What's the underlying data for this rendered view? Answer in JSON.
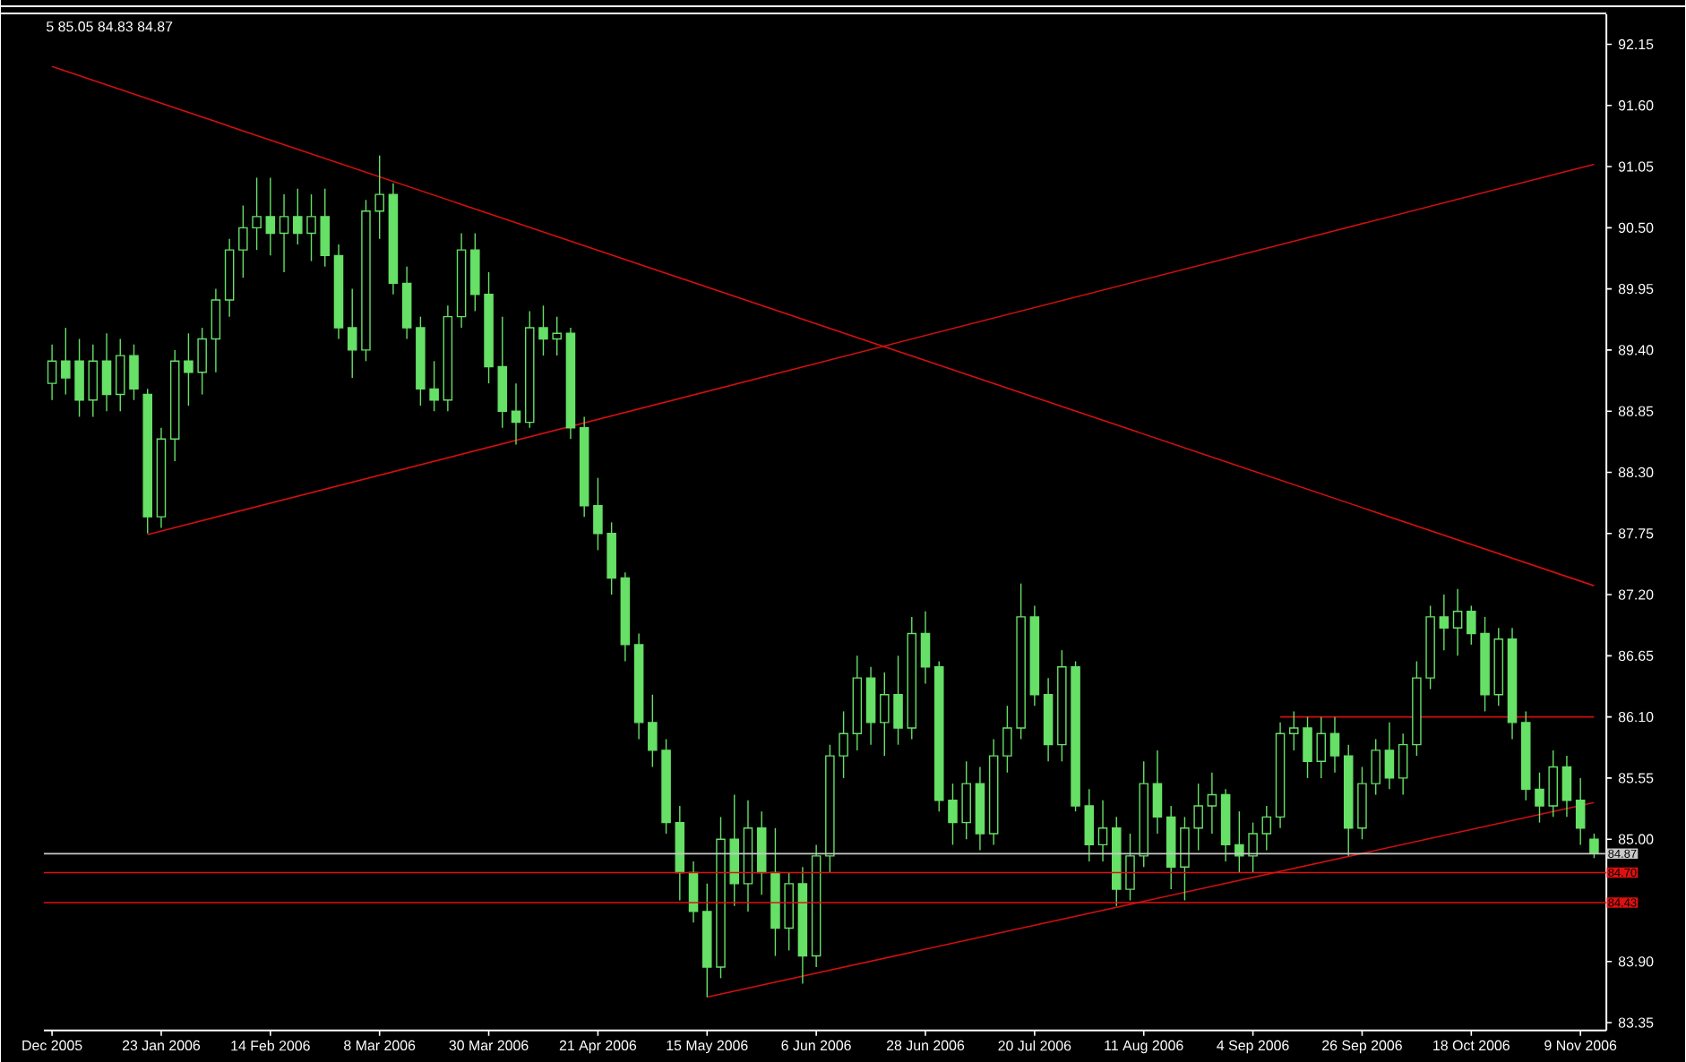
{
  "chart_data": {
    "type": "candlestick",
    "color": "#66e066",
    "categories": [
      "Dec 2005",
      null,
      null,
      null,
      null,
      null,
      null,
      null,
      "23 Jan 2006",
      null,
      null,
      null,
      null,
      null,
      null,
      null,
      "14 Feb 2006",
      null,
      null,
      null,
      null,
      null,
      null,
      null,
      "8 Mar 2006",
      null,
      null,
      null,
      null,
      null,
      null,
      null,
      "30 Mar 2006",
      null,
      null,
      null,
      null,
      null,
      null,
      null,
      "21 Apr 2006",
      null,
      null,
      null,
      null,
      null,
      null,
      null,
      "15 May 2006",
      null,
      null,
      null,
      null,
      null,
      null,
      null,
      "6 Jun 2006",
      null,
      null,
      null,
      null,
      null,
      null,
      null,
      "28 Jun 2006",
      null,
      null,
      null,
      null,
      null,
      null,
      null,
      "20 Jul 2006",
      null,
      null,
      null,
      null,
      null,
      null,
      null,
      "11 Aug 2006",
      null,
      null,
      null,
      null,
      null,
      null,
      null,
      "4 Sep 2006",
      null,
      null,
      null,
      null,
      null,
      null,
      null,
      "26 Sep 2006",
      null,
      null,
      null,
      null,
      null,
      null,
      null,
      "18 Oct 2006",
      null,
      null,
      null,
      null,
      null,
      null,
      null,
      "9 Nov 2006",
      null
    ],
    "ohlc": [
      [
        89.1,
        89.45,
        88.95,
        89.3
      ],
      [
        89.3,
        89.6,
        89.0,
        89.15
      ],
      [
        89.3,
        89.5,
        88.8,
        88.95
      ],
      [
        88.95,
        89.45,
        88.8,
        89.3
      ],
      [
        89.3,
        89.55,
        88.85,
        89.0
      ],
      [
        89.0,
        89.5,
        88.85,
        89.35
      ],
      [
        89.35,
        89.45,
        88.95,
        89.05
      ],
      [
        89.0,
        89.05,
        87.75,
        87.9
      ],
      [
        87.9,
        88.7,
        87.8,
        88.6
      ],
      [
        88.6,
        89.4,
        88.4,
        89.3
      ],
      [
        89.3,
        89.55,
        88.9,
        89.2
      ],
      [
        89.2,
        89.6,
        89.0,
        89.5
      ],
      [
        89.5,
        89.95,
        89.2,
        89.85
      ],
      [
        89.85,
        90.4,
        89.7,
        90.3
      ],
      [
        90.3,
        90.7,
        90.05,
        90.5
      ],
      [
        90.5,
        90.95,
        90.3,
        90.6
      ],
      [
        90.6,
        90.95,
        90.25,
        90.45
      ],
      [
        90.45,
        90.8,
        90.1,
        90.6
      ],
      [
        90.6,
        90.85,
        90.35,
        90.45
      ],
      [
        90.45,
        90.8,
        90.2,
        90.6
      ],
      [
        90.6,
        90.85,
        90.15,
        90.25
      ],
      [
        90.25,
        90.35,
        89.5,
        89.6
      ],
      [
        89.6,
        89.95,
        89.15,
        89.4
      ],
      [
        89.4,
        90.75,
        89.3,
        90.65
      ],
      [
        90.65,
        91.15,
        90.4,
        90.8
      ],
      [
        90.8,
        90.9,
        89.9,
        90.0
      ],
      [
        90.0,
        90.15,
        89.5,
        89.6
      ],
      [
        89.6,
        89.7,
        88.9,
        89.05
      ],
      [
        89.05,
        89.3,
        88.85,
        88.95
      ],
      [
        88.95,
        89.8,
        88.85,
        89.7
      ],
      [
        89.7,
        90.45,
        89.6,
        90.3
      ],
      [
        90.3,
        90.45,
        89.75,
        89.9
      ],
      [
        89.9,
        90.1,
        89.1,
        89.25
      ],
      [
        89.25,
        89.7,
        88.7,
        88.85
      ],
      [
        88.85,
        89.1,
        88.55,
        88.75
      ],
      [
        88.75,
        89.75,
        88.7,
        89.6
      ],
      [
        89.6,
        89.8,
        89.35,
        89.5
      ],
      [
        89.5,
        89.7,
        89.35,
        89.55
      ],
      [
        89.55,
        89.6,
        88.6,
        88.7
      ],
      [
        88.7,
        88.8,
        87.9,
        88.0
      ],
      [
        88.0,
        88.25,
        87.6,
        87.75
      ],
      [
        87.75,
        87.85,
        87.2,
        87.35
      ],
      [
        87.35,
        87.4,
        86.6,
        86.75
      ],
      [
        86.75,
        86.85,
        85.9,
        86.05
      ],
      [
        86.05,
        86.3,
        85.65,
        85.8
      ],
      [
        85.8,
        85.9,
        85.05,
        85.15
      ],
      [
        85.15,
        85.3,
        84.45,
        84.7
      ],
      [
        84.7,
        84.8,
        84.25,
        84.35
      ],
      [
        84.35,
        84.6,
        83.58,
        83.85
      ],
      [
        83.85,
        85.2,
        83.75,
        85.0
      ],
      [
        85.0,
        85.4,
        84.4,
        84.6
      ],
      [
        84.6,
        85.35,
        84.35,
        85.1
      ],
      [
        85.1,
        85.25,
        84.5,
        84.7
      ],
      [
        84.7,
        85.1,
        83.95,
        84.2
      ],
      [
        84.2,
        84.7,
        84.0,
        84.6
      ],
      [
        84.6,
        84.75,
        83.7,
        83.95
      ],
      [
        83.95,
        84.95,
        83.85,
        84.85
      ],
      [
        84.85,
        85.85,
        84.7,
        85.75
      ],
      [
        85.75,
        86.15,
        85.55,
        85.95
      ],
      [
        85.95,
        86.65,
        85.8,
        86.45
      ],
      [
        86.45,
        86.55,
        85.85,
        86.05
      ],
      [
        86.05,
        86.5,
        85.75,
        86.3
      ],
      [
        86.3,
        86.65,
        85.85,
        86.0
      ],
      [
        86.0,
        87.0,
        85.9,
        86.85
      ],
      [
        86.85,
        87.05,
        86.4,
        86.55
      ],
      [
        86.55,
        86.6,
        85.25,
        85.35
      ],
      [
        85.35,
        85.5,
        84.95,
        85.15
      ],
      [
        85.15,
        85.7,
        85.0,
        85.5
      ],
      [
        85.5,
        85.65,
        84.9,
        85.05
      ],
      [
        85.05,
        85.9,
        84.95,
        85.75
      ],
      [
        85.75,
        86.2,
        85.6,
        86.0
      ],
      [
        86.0,
        87.3,
        85.9,
        87.0
      ],
      [
        87.0,
        87.1,
        86.2,
        86.3
      ],
      [
        86.3,
        86.45,
        85.7,
        85.85
      ],
      [
        85.85,
        86.7,
        85.7,
        86.55
      ],
      [
        86.55,
        86.6,
        85.25,
        85.3
      ],
      [
        85.3,
        85.45,
        84.8,
        84.95
      ],
      [
        84.95,
        85.35,
        84.8,
        85.1
      ],
      [
        85.1,
        85.2,
        84.4,
        84.55
      ],
      [
        84.55,
        85.05,
        84.45,
        84.85
      ],
      [
        84.85,
        85.7,
        84.75,
        85.5
      ],
      [
        85.5,
        85.8,
        85.05,
        85.2
      ],
      [
        85.2,
        85.3,
        84.55,
        84.75
      ],
      [
        84.75,
        85.2,
        84.45,
        85.1
      ],
      [
        85.1,
        85.5,
        84.9,
        85.3
      ],
      [
        85.3,
        85.6,
        85.05,
        85.4
      ],
      [
        85.4,
        85.45,
        84.8,
        84.95
      ],
      [
        84.95,
        85.25,
        84.7,
        84.85
      ],
      [
        84.85,
        85.15,
        84.7,
        85.05
      ],
      [
        85.05,
        85.3,
        84.9,
        85.2
      ],
      [
        85.2,
        86.05,
        85.1,
        85.95
      ],
      [
        85.95,
        86.15,
        85.8,
        86.0
      ],
      [
        86.0,
        86.1,
        85.55,
        85.7
      ],
      [
        85.7,
        86.1,
        85.55,
        85.95
      ],
      [
        85.95,
        86.1,
        85.6,
        85.75
      ],
      [
        85.75,
        85.85,
        84.85,
        85.1
      ],
      [
        85.1,
        85.65,
        85.0,
        85.5
      ],
      [
        85.5,
        85.9,
        85.4,
        85.8
      ],
      [
        85.8,
        86.05,
        85.45,
        85.55
      ],
      [
        85.55,
        85.95,
        85.4,
        85.85
      ],
      [
        85.85,
        86.6,
        85.75,
        86.45
      ],
      [
        86.45,
        87.1,
        86.35,
        87.0
      ],
      [
        87.0,
        87.2,
        86.7,
        86.9
      ],
      [
        86.9,
        87.25,
        86.65,
        87.05
      ],
      [
        87.05,
        87.1,
        86.75,
        86.85
      ],
      [
        86.85,
        87.0,
        86.15,
        86.3
      ],
      [
        86.3,
        86.9,
        86.2,
        86.8
      ],
      [
        86.8,
        86.9,
        85.9,
        86.05
      ],
      [
        86.05,
        86.15,
        85.35,
        85.45
      ],
      [
        85.45,
        85.6,
        85.15,
        85.3
      ],
      [
        85.3,
        85.8,
        85.2,
        85.65
      ],
      [
        85.65,
        85.75,
        85.2,
        85.35
      ],
      [
        85.35,
        85.55,
        84.95,
        85.1
      ],
      [
        85.0,
        85.05,
        84.83,
        84.87
      ]
    ],
    "series": [
      {
        "type": "line",
        "color": "#d01010",
        "values": [
          91.95,
          null,
          null,
          null,
          null,
          null,
          null,
          null,
          null,
          null,
          null,
          null,
          null,
          null,
          null,
          null,
          null,
          null,
          null,
          null,
          null,
          null,
          null,
          null,
          null,
          null,
          null,
          null,
          null,
          null,
          null,
          null,
          null,
          null,
          null,
          null,
          null,
          null,
          null,
          null,
          null,
          null,
          null,
          null,
          null,
          null,
          null,
          null,
          null,
          null,
          null,
          null,
          null,
          null,
          null,
          null,
          null,
          null,
          null,
          null,
          null,
          null,
          null,
          null,
          null,
          null,
          null,
          null,
          null,
          null,
          null,
          null,
          null,
          null,
          null,
          null,
          null,
          null,
          null,
          null,
          null,
          null,
          null,
          null,
          null,
          null,
          null,
          null,
          null,
          null,
          null,
          null,
          null,
          null,
          null,
          null,
          null,
          null,
          null,
          null,
          null,
          null,
          null,
          null,
          null,
          null,
          null,
          null,
          null,
          null,
          null,
          null,
          null,
          87.28
        ]
      },
      {
        "type": "line",
        "color": "#d01010",
        "values": [
          null,
          null,
          null,
          null,
          null,
          null,
          null,
          87.74,
          null,
          null,
          null,
          null,
          null,
          null,
          null,
          null,
          null,
          null,
          null,
          null,
          null,
          null,
          null,
          null,
          null,
          null,
          null,
          null,
          null,
          null,
          null,
          null,
          null,
          null,
          null,
          null,
          null,
          null,
          null,
          null,
          null,
          null,
          null,
          null,
          null,
          null,
          null,
          null,
          null,
          null,
          null,
          null,
          null,
          null,
          null,
          null,
          null,
          null,
          null,
          null,
          null,
          null,
          null,
          null,
          null,
          null,
          null,
          null,
          null,
          null,
          null,
          null,
          null,
          null,
          null,
          null,
          null,
          null,
          null,
          null,
          null,
          null,
          null,
          null,
          null,
          null,
          null,
          null,
          null,
          null,
          null,
          null,
          null,
          null,
          null,
          null,
          null,
          null,
          null,
          null,
          null,
          null,
          null,
          null,
          null,
          null,
          null,
          null,
          null,
          null,
          null,
          null,
          null,
          91.07
        ]
      },
      {
        "type": "line",
        "color": "#d01010",
        "values": [
          null,
          null,
          null,
          null,
          null,
          null,
          null,
          null,
          null,
          null,
          null,
          null,
          null,
          null,
          null,
          null,
          null,
          null,
          null,
          null,
          null,
          null,
          null,
          null,
          null,
          null,
          null,
          null,
          null,
          null,
          null,
          null,
          null,
          null,
          null,
          null,
          null,
          null,
          null,
          null,
          null,
          null,
          null,
          null,
          null,
          null,
          null,
          null,
          83.58,
          null,
          null,
          null,
          null,
          null,
          null,
          null,
          null,
          null,
          null,
          null,
          null,
          null,
          null,
          null,
          null,
          null,
          null,
          null,
          null,
          null,
          null,
          null,
          null,
          null,
          null,
          null,
          null,
          null,
          null,
          null,
          null,
          null,
          null,
          null,
          null,
          null,
          null,
          null,
          null,
          null,
          null,
          null,
          null,
          null,
          null,
          null,
          null,
          null,
          null,
          null,
          null,
          null,
          null,
          null,
          null,
          null,
          null,
          null,
          null,
          null,
          null,
          null,
          null,
          85.33
        ]
      },
      {
        "type": "line",
        "color": "#d01010",
        "values": [
          null,
          null,
          null,
          null,
          null,
          null,
          null,
          null,
          null,
          null,
          null,
          null,
          null,
          null,
          null,
          null,
          null,
          null,
          null,
          null,
          null,
          null,
          null,
          null,
          null,
          null,
          null,
          null,
          null,
          null,
          null,
          null,
          null,
          null,
          null,
          null,
          null,
          null,
          null,
          null,
          null,
          null,
          null,
          null,
          null,
          null,
          null,
          null,
          null,
          null,
          null,
          null,
          null,
          null,
          null,
          null,
          null,
          null,
          null,
          null,
          null,
          null,
          null,
          null,
          null,
          null,
          null,
          null,
          null,
          null,
          null,
          null,
          null,
          null,
          null,
          null,
          null,
          null,
          null,
          null,
          null,
          null,
          null,
          null,
          null,
          null,
          null,
          null,
          null,
          null,
          86.1,
          null,
          null,
          null,
          null,
          null,
          null,
          null,
          null,
          null,
          null,
          null,
          null,
          null,
          null,
          null,
          null,
          null,
          null,
          null,
          null,
          null,
          null,
          86.1
        ]
      }
    ],
    "ylim": [
      83.28,
      92.42
    ],
    "yticks": [
      83.35,
      {
        "value": 83.9,
        "label": "83.90"
      },
      {
        "value": 84.45,
        "label": null
      },
      {
        "value": 85,
        "label": "85.00"
      },
      85.55,
      {
        "value": 86.1,
        "label": "86.10"
      },
      86.65,
      {
        "value": 87.2,
        "label": "87.20"
      },
      87.75,
      {
        "value": 88.3,
        "label": "88.30"
      },
      88.85,
      {
        "value": 89.4,
        "label": "89.40"
      },
      89.95,
      {
        "value": 90.5,
        "label": "90.50"
      },
      91.05,
      {
        "value": 91.6,
        "label": "91.60"
      },
      92.15
    ],
    "ref_lines": [
      {
        "axis": "y",
        "value": 84.87,
        "label": "84.87",
        "color": "#c8c8c8"
      },
      {
        "axis": "y",
        "value": 84.7,
        "label": "84.70",
        "color": "#e01010"
      },
      {
        "axis": "y",
        "value": 84.43,
        "label": "84.43",
        "color": "#e01010"
      }
    ],
    "annotations": [
      "5 85.05 84.83 84.87"
    ]
  }
}
